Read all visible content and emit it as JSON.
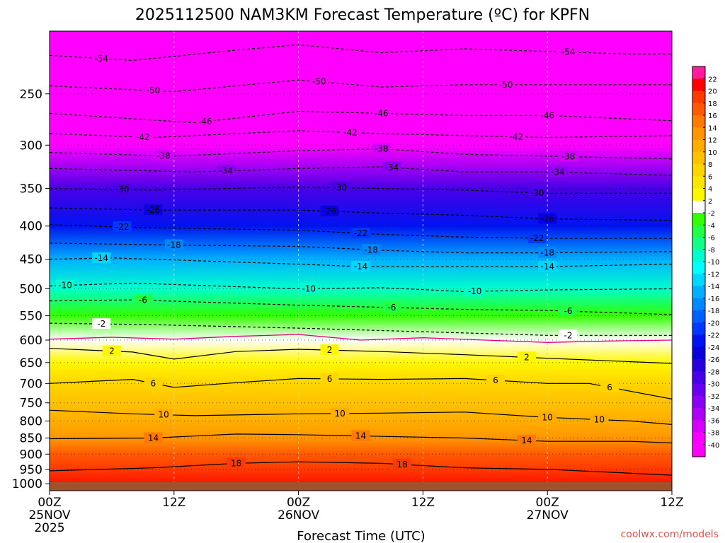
{
  "chart_data": {
    "type": "heatmap",
    "title": "2025112500 NAM3KM Forecast Temperature (ºC) for KPFN",
    "xlabel": "Forecast Time (UTC)",
    "ylabel": "",
    "x_hours": [
      0,
      60
    ],
    "x_ticks": [
      {
        "hour": 0,
        "lines": [
          "00Z",
          "25NOV",
          "2025"
        ]
      },
      {
        "hour": 12,
        "lines": [
          "12Z"
        ]
      },
      {
        "hour": 24,
        "lines": [
          "00Z",
          "26NOV"
        ]
      },
      {
        "hour": 36,
        "lines": [
          "12Z"
        ]
      },
      {
        "hour": 48,
        "lines": [
          "00Z",
          "27NOV"
        ]
      },
      {
        "hour": 60,
        "lines": [
          "12Z"
        ]
      }
    ],
    "y_axis": {
      "scale": "log-pressure",
      "top_hPa": 200,
      "bottom_hPa": 1025,
      "inverted": true
    },
    "y_ticks": [
      250,
      300,
      350,
      400,
      450,
      500,
      550,
      600,
      650,
      700,
      750,
      800,
      850,
      900,
      950,
      1000
    ],
    "colorbar": {
      "labels": [
        "22",
        "20",
        "18",
        "16",
        "14",
        "12",
        "10",
        "8",
        "6",
        "4",
        "2",
        "-2",
        "-4",
        "-6",
        "-8",
        "-10",
        "-12",
        "-14",
        "-16",
        "-18",
        "-20",
        "-22",
        "-24",
        "-26",
        "-28",
        "-30",
        "-32",
        "-34",
        "-36",
        "-38",
        "-40"
      ],
      "colors": [
        "#ff1aa0",
        "#ff0000",
        "#ff3a00",
        "#ff5a00",
        "#ff7a00",
        "#ff9600",
        "#ffae00",
        "#ffc200",
        "#ffd500",
        "#ffe600",
        "#fff700",
        "#ffffff",
        "#33ff00",
        "#22ff44",
        "#11ff88",
        "#00ffcc",
        "#00ffff",
        "#00d8ff",
        "#00b0ff",
        "#0088ff",
        "#0060ff",
        "#0038ff",
        "#0014f0",
        "#0a00dd",
        "#2800dd",
        "#4800e8",
        "#6a00f0",
        "#8c00f4",
        "#b000f8",
        "#d400fc",
        "#f800ff",
        "#ff00ff"
      ]
    },
    "temperature_profile": [
      {
        "p": 200,
        "t": -57
      },
      {
        "p": 250,
        "t": -50
      },
      {
        "p": 300,
        "t": -42
      },
      {
        "p": 350,
        "t": -30
      },
      {
        "p": 400,
        "t": -24
      },
      {
        "p": 450,
        "t": -15
      },
      {
        "p": 500,
        "t": -10
      },
      {
        "p": 550,
        "t": -4
      },
      {
        "p": 600,
        "t": 1
      },
      {
        "p": 650,
        "t": 3
      },
      {
        "p": 700,
        "t": 6
      },
      {
        "p": 750,
        "t": 8
      },
      {
        "p": 800,
        "t": 10
      },
      {
        "p": 850,
        "t": 13
      },
      {
        "p": 900,
        "t": 16
      },
      {
        "p": 950,
        "t": 19
      },
      {
        "p": 1025,
        "t": 21
      }
    ],
    "contours": [
      {
        "t": -54,
        "style": "dashed",
        "pts": [
          [
            0,
            218
          ],
          [
            8,
            222
          ],
          [
            18,
            214
          ],
          [
            24,
            210
          ],
          [
            32,
            216
          ],
          [
            40,
            213
          ],
          [
            48,
            215
          ],
          [
            56,
            217
          ],
          [
            60,
            217
          ]
        ],
        "labels": [
          [
            5,
            -54
          ],
          [
            50,
            -54
          ]
        ]
      },
      {
        "t": -50,
        "style": "dashed",
        "pts": [
          [
            0,
            243
          ],
          [
            12,
            248
          ],
          [
            24,
            238
          ],
          [
            32,
            244
          ],
          [
            40,
            242
          ],
          [
            48,
            242
          ],
          [
            60,
            242
          ]
        ],
        "labels": [
          [
            10,
            -50
          ],
          [
            26,
            -50
          ],
          [
            44,
            -50
          ]
        ]
      },
      {
        "t": -46,
        "style": "dashed",
        "pts": [
          [
            0,
            268
          ],
          [
            14,
            277
          ],
          [
            24,
            266
          ],
          [
            32,
            268
          ],
          [
            40,
            270
          ],
          [
            48,
            270
          ],
          [
            60,
            275
          ]
        ],
        "labels": [
          [
            15,
            -46
          ],
          [
            32,
            -46
          ],
          [
            48,
            -46
          ]
        ]
      },
      {
        "t": -42,
        "style": "dashed",
        "pts": [
          [
            0,
            288
          ],
          [
            10,
            292
          ],
          [
            24,
            285
          ],
          [
            32,
            288
          ],
          [
            40,
            290
          ],
          [
            48,
            292
          ],
          [
            60,
            290
          ]
        ],
        "labels": [
          [
            9,
            -42
          ],
          [
            29,
            -42
          ],
          [
            45,
            -42
          ]
        ]
      },
      {
        "t": -38,
        "style": "dashed",
        "pts": [
          [
            0,
            308
          ],
          [
            12,
            312
          ],
          [
            24,
            306
          ],
          [
            32,
            304
          ],
          [
            40,
            310
          ],
          [
            48,
            312
          ],
          [
            60,
            315
          ]
        ],
        "labels": [
          [
            11,
            -38
          ],
          [
            32,
            -38
          ],
          [
            50,
            -38
          ]
        ]
      },
      {
        "t": -34,
        "style": "dashed",
        "pts": [
          [
            0,
            326
          ],
          [
            14,
            330
          ],
          [
            24,
            326
          ],
          [
            32,
            324
          ],
          [
            40,
            330
          ],
          [
            48,
            330
          ],
          [
            60,
            334
          ]
        ],
        "labels": [
          [
            17,
            -34
          ],
          [
            33,
            -34
          ],
          [
            49,
            -34
          ]
        ]
      },
      {
        "t": -30,
        "style": "dashed",
        "pts": [
          [
            0,
            350
          ],
          [
            10,
            352
          ],
          [
            24,
            348
          ],
          [
            32,
            350
          ],
          [
            40,
            352
          ],
          [
            48,
            356
          ],
          [
            60,
            356
          ]
        ],
        "labels": [
          [
            7,
            -30
          ],
          [
            28,
            -30
          ],
          [
            47,
            -30
          ]
        ]
      },
      {
        "t": -26,
        "style": "dashed",
        "pts": [
          [
            0,
            375
          ],
          [
            10,
            378
          ],
          [
            24,
            378
          ],
          [
            32,
            382
          ],
          [
            40,
            385
          ],
          [
            48,
            390
          ],
          [
            60,
            392
          ]
        ],
        "labels": [
          [
            10,
            -26
          ],
          [
            27,
            -26
          ],
          [
            48,
            -26
          ]
        ]
      },
      {
        "t": -22,
        "style": "dashed",
        "pts": [
          [
            0,
            398
          ],
          [
            8,
            402
          ],
          [
            24,
            406
          ],
          [
            32,
            412
          ],
          [
            40,
            416
          ],
          [
            48,
            418
          ],
          [
            60,
            418
          ]
        ],
        "labels": [
          [
            7,
            -22
          ],
          [
            30,
            -22
          ],
          [
            47,
            -22
          ]
        ]
      },
      {
        "t": -18,
        "style": "dashed",
        "pts": [
          [
            0,
            425
          ],
          [
            12,
            428
          ],
          [
            24,
            430
          ],
          [
            32,
            436
          ],
          [
            40,
            440
          ],
          [
            48,
            440
          ],
          [
            60,
            438
          ]
        ],
        "labels": [
          [
            12,
            -18
          ],
          [
            31,
            -18
          ],
          [
            48,
            -18
          ]
        ]
      },
      {
        "t": -14,
        "style": "dashed",
        "pts": [
          [
            0,
            450
          ],
          [
            6,
            448
          ],
          [
            24,
            458
          ],
          [
            30,
            462
          ],
          [
            40,
            462
          ],
          [
            48,
            462
          ],
          [
            60,
            458
          ]
        ],
        "labels": [
          [
            5,
            -14
          ],
          [
            30,
            -14
          ],
          [
            48,
            -14
          ]
        ]
      },
      {
        "t": -10,
        "style": "dashed",
        "pts": [
          [
            0,
            495
          ],
          [
            8,
            490
          ],
          [
            24,
            500
          ],
          [
            32,
            498
          ],
          [
            40,
            505
          ],
          [
            48,
            502
          ],
          [
            60,
            500
          ]
        ],
        "labels": [
          [
            1.5,
            -10
          ],
          [
            25,
            -10
          ],
          [
            41,
            -10
          ]
        ]
      },
      {
        "t": -6,
        "style": "dashed",
        "pts": [
          [
            0,
            522
          ],
          [
            8,
            520
          ],
          [
            24,
            530
          ],
          [
            32,
            534
          ],
          [
            40,
            538
          ],
          [
            48,
            540
          ],
          [
            60,
            548
          ]
        ],
        "labels": [
          [
            9,
            -6
          ],
          [
            33,
            -6
          ],
          [
            50,
            -6
          ]
        ]
      },
      {
        "t": -2,
        "style": "dashed",
        "pts": [
          [
            0,
            565
          ],
          [
            10,
            568
          ],
          [
            24,
            575
          ],
          [
            32,
            580
          ],
          [
            40,
            585
          ],
          [
            48,
            590
          ],
          [
            60,
            590
          ]
        ],
        "labels": [
          [
            5,
            -2
          ],
          [
            50,
            -2
          ]
        ]
      },
      {
        "t": 2,
        "style": "solid",
        "pts": [
          [
            0,
            618
          ],
          [
            8,
            626
          ],
          [
            12,
            642
          ],
          [
            18,
            625
          ],
          [
            24,
            620
          ],
          [
            32,
            625
          ],
          [
            40,
            632
          ],
          [
            48,
            640
          ],
          [
            60,
            652
          ]
        ],
        "labels": [
          [
            6,
            2
          ],
          [
            27,
            2
          ],
          [
            46,
            2
          ]
        ]
      },
      {
        "t": 6,
        "style": "solid",
        "pts": [
          [
            0,
            700
          ],
          [
            8,
            690
          ],
          [
            12,
            710
          ],
          [
            18,
            698
          ],
          [
            24,
            688
          ],
          [
            32,
            690
          ],
          [
            40,
            688
          ],
          [
            48,
            700
          ],
          [
            52,
            700
          ],
          [
            60,
            740
          ]
        ],
        "labels": [
          [
            10,
            6
          ],
          [
            27,
            6
          ],
          [
            43,
            6
          ],
          [
            54,
            6
          ]
        ]
      },
      {
        "t": 10,
        "style": "solid",
        "pts": [
          [
            0,
            770
          ],
          [
            8,
            780
          ],
          [
            14,
            785
          ],
          [
            24,
            780
          ],
          [
            32,
            778
          ],
          [
            40,
            775
          ],
          [
            48,
            790
          ],
          [
            56,
            800
          ],
          [
            60,
            810
          ]
        ],
        "labels": [
          [
            11,
            10
          ],
          [
            28,
            10
          ],
          [
            48,
            10
          ],
          [
            53,
            10
          ]
        ]
      },
      {
        "t": 14,
        "style": "solid",
        "pts": [
          [
            0,
            852
          ],
          [
            10,
            850
          ],
          [
            18,
            838
          ],
          [
            24,
            840
          ],
          [
            32,
            845
          ],
          [
            40,
            850
          ],
          [
            48,
            860
          ],
          [
            56,
            860
          ],
          [
            60,
            865
          ]
        ],
        "labels": [
          [
            10,
            14
          ],
          [
            30,
            14
          ],
          [
            46,
            14
          ]
        ]
      },
      {
        "t": 18,
        "style": "solid",
        "pts": [
          [
            0,
            955
          ],
          [
            10,
            945
          ],
          [
            18,
            930
          ],
          [
            24,
            925
          ],
          [
            32,
            930
          ],
          [
            40,
            945
          ],
          [
            48,
            950
          ],
          [
            54,
            960
          ],
          [
            60,
            970
          ]
        ],
        "labels": [
          [
            18,
            18
          ],
          [
            34,
            18
          ]
        ]
      }
    ],
    "freezing_line": {
      "label": "0",
      "style": "solid-magenta",
      "color": "#e0007a",
      "pts": [
        [
          0,
          598
        ],
        [
          6,
          594
        ],
        [
          12,
          598
        ],
        [
          18,
          592
        ],
        [
          24,
          588
        ],
        [
          30,
          600
        ],
        [
          36,
          595
        ],
        [
          42,
          600
        ],
        [
          48,
          605
        ],
        [
          54,
          602
        ],
        [
          60,
          600
        ]
      ]
    }
  },
  "credit": "coolwx.com/models",
  "colors": {
    "ground": "#a0522d",
    "grid": "#d0d0d0",
    "contour": "#000000",
    "freezing": "#e0007a"
  }
}
